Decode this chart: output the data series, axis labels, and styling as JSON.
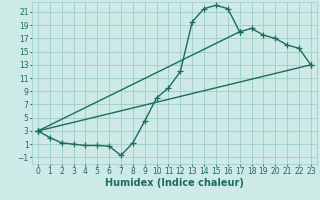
{
  "background_color": "#ceeae7",
  "grid_color": "#9dcdc8",
  "line_color": "#1a6b62",
  "marker": "+",
  "markersize": 4,
  "linewidth": 1.0,
  "xlabel": "Humidex (Indice chaleur)",
  "xlabel_fontsize": 7,
  "tick_fontsize": 5.5,
  "xlim": [
    -0.5,
    23.5
  ],
  "ylim": [
    -2.0,
    22.5
  ],
  "xticks": [
    0,
    1,
    2,
    3,
    4,
    5,
    6,
    7,
    8,
    9,
    10,
    11,
    12,
    13,
    14,
    15,
    16,
    17,
    18,
    19,
    20,
    21,
    22,
    23
  ],
  "yticks": [
    -1,
    1,
    3,
    5,
    7,
    9,
    11,
    13,
    15,
    17,
    19,
    21
  ],
  "curves": [
    {
      "x": [
        0,
        1,
        2,
        3,
        4,
        5,
        6,
        7,
        8,
        9,
        10,
        11,
        12,
        13,
        14,
        15,
        16,
        17
      ],
      "y": [
        3,
        2,
        1.2,
        1,
        0.8,
        0.8,
        0.7,
        -0.7,
        1.2,
        4.5,
        8,
        9.5,
        12,
        19.5,
        21.5,
        22,
        21.5,
        18
      ]
    },
    {
      "x": [
        0,
        23
      ],
      "y": [
        3,
        13
      ]
    },
    {
      "x": [
        0,
        17,
        18,
        19,
        20,
        21,
        22,
        23
      ],
      "y": [
        3,
        18,
        18.5,
        17.5,
        17,
        16,
        15.5,
        13
      ]
    }
  ]
}
